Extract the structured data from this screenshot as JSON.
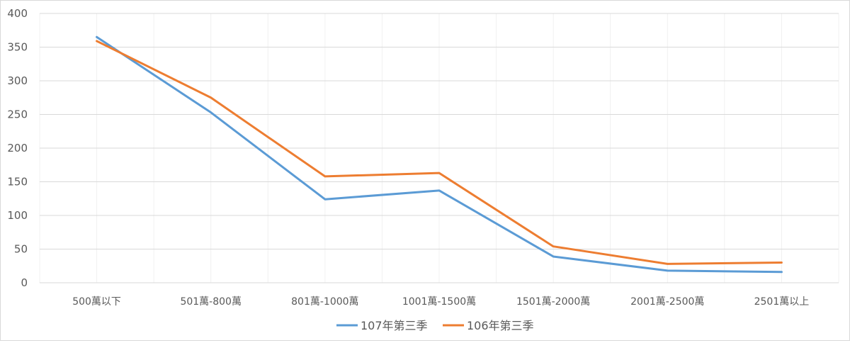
{
  "chart_data": {
    "type": "line",
    "title": "",
    "xlabel": "",
    "ylabel": "",
    "categories": [
      "500萬以下",
      "501萬-800萬",
      "801萬-1000萬",
      "1001萬-1500萬",
      "1501萬-2000萬",
      "2001萬-2500萬",
      "2501萬以上"
    ],
    "series": [
      {
        "name": "107年第三季",
        "color": "#5b9bd5",
        "values": [
          365,
          253,
          124,
          137,
          39,
          18,
          16
        ]
      },
      {
        "name": "106年第三季",
        "color": "#ed7d31",
        "values": [
          359,
          275,
          158,
          163,
          54,
          28,
          30
        ]
      }
    ],
    "ylim": [
      0,
      400
    ],
    "yticks": [
      0,
      50,
      100,
      150,
      200,
      250,
      300,
      350,
      400
    ],
    "grid": true,
    "legend": "bottom"
  }
}
